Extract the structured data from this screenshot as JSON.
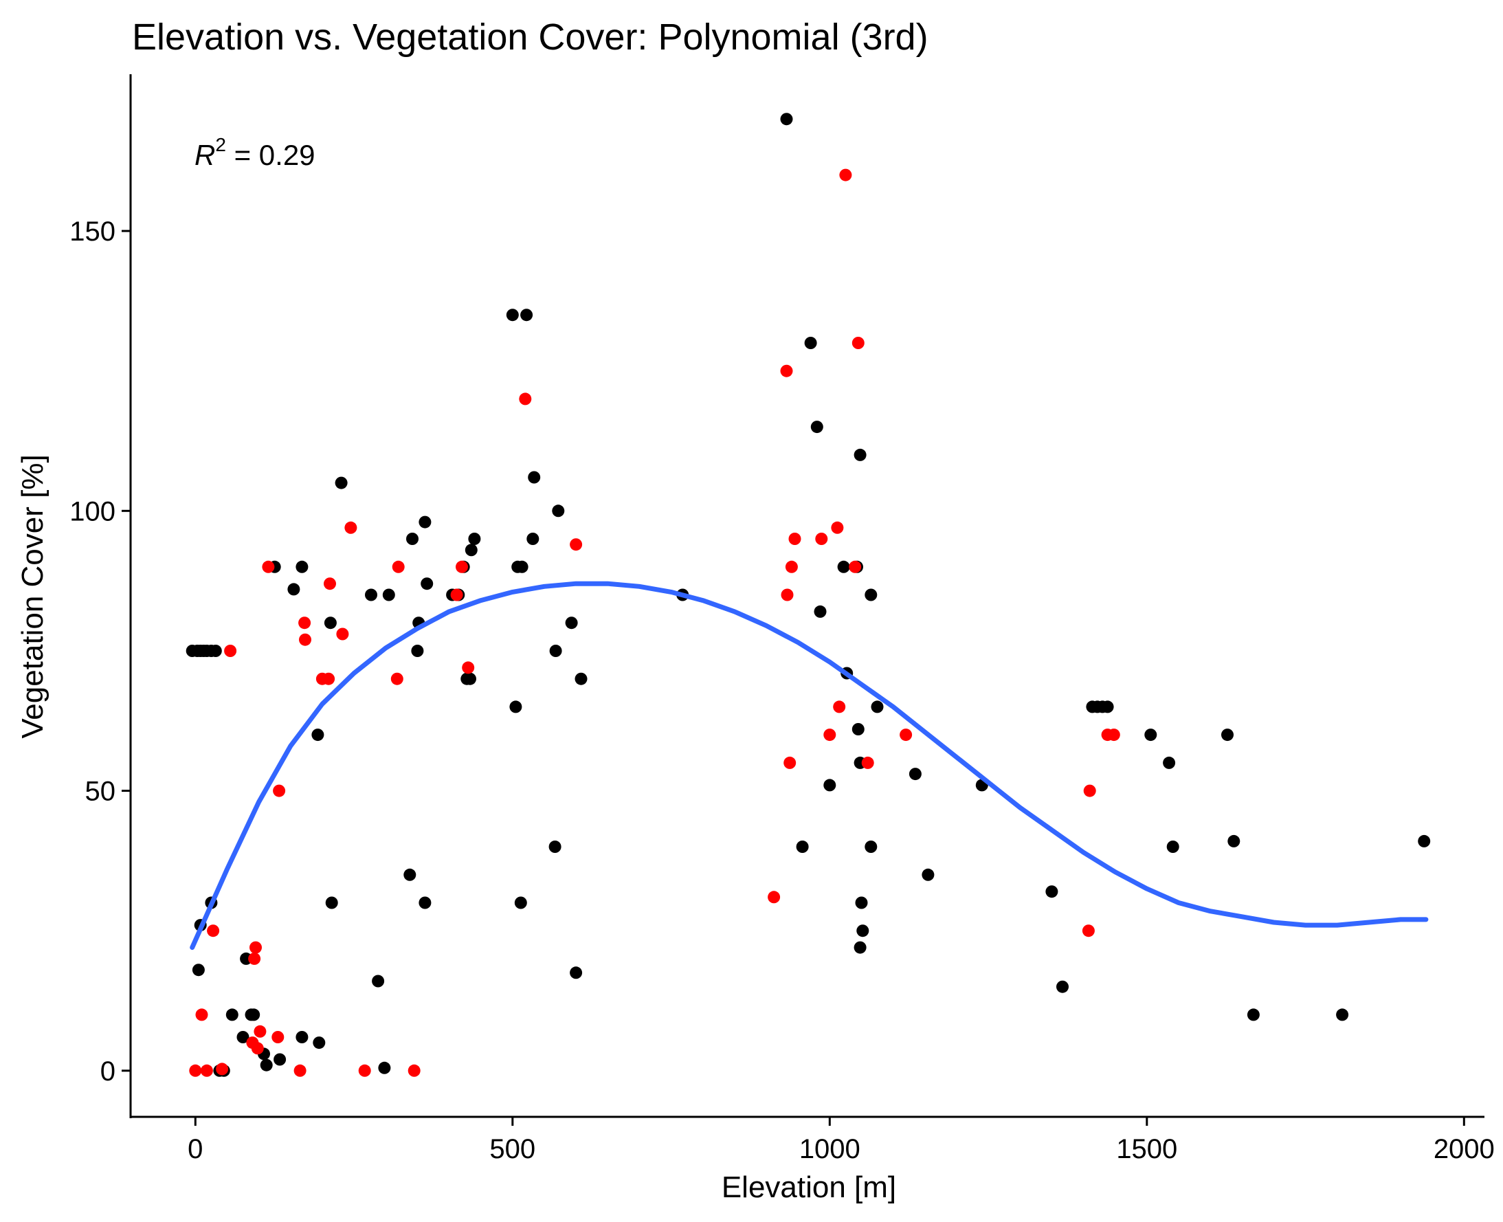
{
  "chart_data": {
    "type": "scatter",
    "title": "Elevation vs. Vegetation Cover: Polynomial (3rd)",
    "xlabel": "Elevation [m]",
    "ylabel": "Vegetation Cover [%]",
    "xlim": [
      -100,
      2030
    ],
    "ylim": [
      -8,
      178
    ],
    "x_ticks": [
      0,
      500,
      1000,
      1500,
      2000
    ],
    "y_ticks": [
      0,
      50,
      100,
      150
    ],
    "grid": false,
    "legend": "none",
    "annotation": {
      "r_symbol": "R",
      "r_exponent": "2",
      "text": " = 0.29"
    },
    "series": [
      {
        "color": "#000000",
        "points": [
          [
            -5,
            75
          ],
          [
            3,
            75
          ],
          [
            8,
            75
          ],
          [
            13,
            75
          ],
          [
            18,
            75
          ],
          [
            25,
            75
          ],
          [
            32,
            75
          ],
          [
            5,
            18
          ],
          [
            8,
            26
          ],
          [
            25,
            30
          ],
          [
            38,
            0
          ],
          [
            45,
            0
          ],
          [
            58,
            10
          ],
          [
            75,
            6
          ],
          [
            80,
            20
          ],
          [
            88,
            10
          ],
          [
            92,
            10
          ],
          [
            108,
            3
          ],
          [
            112,
            1
          ],
          [
            133,
            2
          ],
          [
            125,
            90
          ],
          [
            155,
            86
          ],
          [
            168,
            90
          ],
          [
            168,
            6
          ],
          [
            195,
            5
          ],
          [
            193,
            60
          ],
          [
            213,
            80
          ],
          [
            215,
            30
          ],
          [
            230,
            105
          ],
          [
            277,
            85
          ],
          [
            288,
            16
          ],
          [
            298,
            0.5
          ],
          [
            305,
            85
          ],
          [
            338,
            35
          ],
          [
            342,
            95
          ],
          [
            350,
            75
          ],
          [
            352,
            80
          ],
          [
            362,
            30
          ],
          [
            362,
            98
          ],
          [
            365,
            87
          ],
          [
            405,
            85
          ],
          [
            415,
            85
          ],
          [
            423,
            90
          ],
          [
            428,
            70
          ],
          [
            433,
            70
          ],
          [
            435,
            93
          ],
          [
            440,
            95
          ],
          [
            500,
            135
          ],
          [
            505,
            65
          ],
          [
            508,
            90
          ],
          [
            513,
            30
          ],
          [
            515,
            90
          ],
          [
            522,
            135
          ],
          [
            532,
            95
          ],
          [
            534,
            106
          ],
          [
            567,
            40
          ],
          [
            568,
            75
          ],
          [
            572,
            100
          ],
          [
            593,
            80
          ],
          [
            600,
            17.5
          ],
          [
            608,
            70
          ],
          [
            768,
            85
          ],
          [
            932,
            170
          ],
          [
            957,
            40
          ],
          [
            970,
            130
          ],
          [
            980,
            115
          ],
          [
            985,
            82
          ],
          [
            1000,
            51
          ],
          [
            1027,
            71
          ],
          [
            1022,
            90
          ],
          [
            1043,
            90
          ],
          [
            1048,
            55
          ],
          [
            1045,
            61
          ],
          [
            1048,
            110
          ],
          [
            1048,
            22
          ],
          [
            1050,
            30
          ],
          [
            1052,
            25
          ],
          [
            1065,
            85
          ],
          [
            1065,
            40
          ],
          [
            1075,
            65
          ],
          [
            1135,
            53
          ],
          [
            1155,
            35
          ],
          [
            1240,
            51
          ],
          [
            1350,
            32
          ],
          [
            1367,
            15
          ],
          [
            1414,
            65
          ],
          [
            1422,
            65
          ],
          [
            1430,
            65
          ],
          [
            1438,
            65
          ],
          [
            1506,
            60
          ],
          [
            1535,
            55
          ],
          [
            1541,
            40
          ],
          [
            1627,
            60
          ],
          [
            1637,
            41
          ],
          [
            1668,
            10
          ],
          [
            1808,
            10
          ],
          [
            1937,
            41
          ]
        ]
      },
      {
        "color": "#ff0000",
        "points": [
          [
            0,
            0
          ],
          [
            10,
            10
          ],
          [
            18,
            0
          ],
          [
            28,
            25
          ],
          [
            42,
            0.3
          ],
          [
            55,
            75
          ],
          [
            90,
            5
          ],
          [
            93,
            20
          ],
          [
            95,
            22
          ],
          [
            98,
            4
          ],
          [
            102,
            7
          ],
          [
            115,
            90
          ],
          [
            130,
            6
          ],
          [
            132,
            50
          ],
          [
            165,
            0
          ],
          [
            172,
            80
          ],
          [
            173,
            77
          ],
          [
            200,
            70
          ],
          [
            210,
            70
          ],
          [
            212,
            87
          ],
          [
            232,
            78
          ],
          [
            245,
            97
          ],
          [
            267,
            0
          ],
          [
            318,
            70
          ],
          [
            320,
            90
          ],
          [
            345,
            0
          ],
          [
            412,
            85
          ],
          [
            420,
            90
          ],
          [
            430,
            72
          ],
          [
            520,
            120
          ],
          [
            600,
            94
          ],
          [
            912,
            31
          ],
          [
            932,
            125
          ],
          [
            933,
            85
          ],
          [
            937,
            55
          ],
          [
            940,
            90
          ],
          [
            945,
            95
          ],
          [
            987,
            95
          ],
          [
            1000,
            60
          ],
          [
            1012,
            97
          ],
          [
            1015,
            65
          ],
          [
            1025,
            160
          ],
          [
            1040,
            90
          ],
          [
            1045,
            130
          ],
          [
            1060,
            55
          ],
          [
            1120,
            60
          ],
          [
            1408,
            25
          ],
          [
            1410,
            50
          ],
          [
            1438,
            60
          ],
          [
            1448,
            60
          ]
        ]
      }
    ],
    "fit_line": {
      "color": "#3366ff",
      "points": [
        [
          -5,
          22
        ],
        [
          50,
          36
        ],
        [
          100,
          48
        ],
        [
          150,
          58
        ],
        [
          200,
          65.5
        ],
        [
          250,
          71
        ],
        [
          300,
          75.5
        ],
        [
          350,
          79
        ],
        [
          400,
          82
        ],
        [
          450,
          84
        ],
        [
          500,
          85.5
        ],
        [
          550,
          86.5
        ],
        [
          600,
          87
        ],
        [
          650,
          87
        ],
        [
          700,
          86.5
        ],
        [
          750,
          85.5
        ],
        [
          800,
          84
        ],
        [
          850,
          82
        ],
        [
          900,
          79.5
        ],
        [
          950,
          76.5
        ],
        [
          1000,
          73
        ],
        [
          1050,
          69
        ],
        [
          1100,
          65
        ],
        [
          1150,
          60.5
        ],
        [
          1200,
          56
        ],
        [
          1250,
          51.5
        ],
        [
          1300,
          47
        ],
        [
          1350,
          43
        ],
        [
          1400,
          39
        ],
        [
          1450,
          35.5
        ],
        [
          1500,
          32.5
        ],
        [
          1550,
          30
        ],
        [
          1600,
          28.5
        ],
        [
          1650,
          27.5
        ],
        [
          1700,
          26.5
        ],
        [
          1750,
          26
        ],
        [
          1800,
          26
        ],
        [
          1850,
          26.5
        ],
        [
          1900,
          27
        ],
        [
          1940,
          27
        ]
      ]
    }
  }
}
